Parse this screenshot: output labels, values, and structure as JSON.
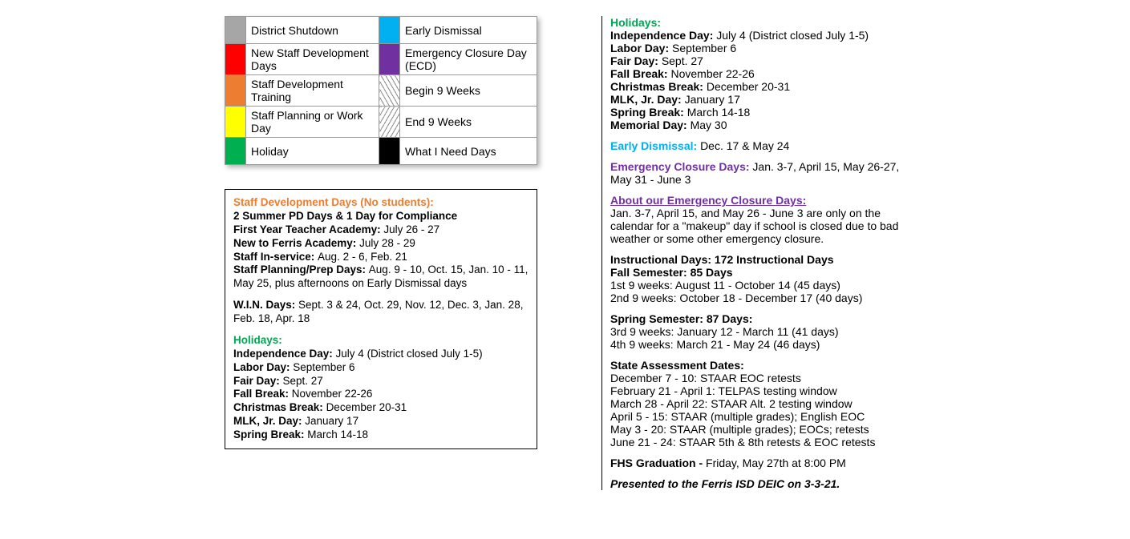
{
  "legend": {
    "rows": [
      {
        "color1": "#a6a6a6",
        "label1": "District Shutdown",
        "color2": "#00b0f0",
        "label2": "Early Dismissal",
        "pattern2": ""
      },
      {
        "color1": "#ff0000",
        "label1": "New Staff Development Days",
        "color2": "#7030a0",
        "label2": "Emergency Closure Day (ECD)",
        "pattern2": ""
      },
      {
        "color1": "#ed7d31",
        "label1": "Staff Development Training",
        "color2": "",
        "label2": "Begin 9 Weeks",
        "pattern2": "hatch"
      },
      {
        "color1": "#ffff00",
        "label1": "Staff Planning or Work Day",
        "color2": "",
        "label2": "End 9 Weeks",
        "pattern2": "hatch2"
      },
      {
        "color1": "#00b050",
        "label1": "Holiday",
        "color2": "#000000",
        "label2": "What I Need Days",
        "pattern2": ""
      }
    ]
  },
  "left": {
    "staffDev": {
      "heading": "Staff Development Days (No students):",
      "summer": "2 Summer PD Days & 1 Day for Compliance",
      "items": [
        {
          "label": "First Year Teacher Academy:",
          "value": "July 26 - 27"
        },
        {
          "label": "New to Ferris Academy:",
          "value": "July 28 - 29"
        },
        {
          "label": "Staff In-service:",
          "value": "Aug. 2 - 6, Feb. 21"
        },
        {
          "label": "Staff Planning/Prep Days:",
          "value": "Aug. 9 - 10, Oct. 15, Jan. 10 - 11, May 25, plus afternoons on Early Dismissal days"
        }
      ],
      "win": {
        "label": "W.I.N. Days:",
        "value": "Sept. 3 & 24, Oct. 29, Nov. 12, Dec. 3, Jan. 28, Feb. 18, Apr. 18"
      }
    },
    "holidays": {
      "heading": "Holidays:",
      "items": [
        {
          "label": "Independence Day:",
          "value": "July 4 (District closed July 1-5)"
        },
        {
          "label": "Labor Day:",
          "value": "September 6"
        },
        {
          "label": "Fair Day:",
          "value": "Sept. 27"
        },
        {
          "label": "Fall Break:",
          "value": "November 22-26"
        },
        {
          "label": "Christmas Break:",
          "value": "December 20-31"
        },
        {
          "label": "MLK, Jr. Day:",
          "value": "January 17"
        },
        {
          "label": "Spring Break:",
          "value": "March 14-18"
        }
      ]
    }
  },
  "right": {
    "holidays": {
      "heading": "Holidays:",
      "items": [
        {
          "label": "Independence Day:",
          "value": "July 4 (District closed July 1-5)"
        },
        {
          "label": "Labor Day:",
          "value": "September 6"
        },
        {
          "label": "Fair Day:",
          "value": "Sept. 27"
        },
        {
          "label": "Fall Break:",
          "value": "November 22-26"
        },
        {
          "label": "Christmas Break:",
          "value": "December 20-31"
        },
        {
          "label": "MLK, Jr. Day:",
          "value": "January 17"
        },
        {
          "label": "Spring Break:",
          "value": "March 14-18"
        },
        {
          "label": "Memorial Day:",
          "value": "May 30"
        }
      ]
    },
    "earlyDismissal": {
      "heading": "Early Dismissal:",
      "value": "Dec. 17 & May 24"
    },
    "ecd": {
      "heading": "Emergency Closure Days:",
      "value": "Jan. 3-7, April 15, May 26-27, May 31 - June 3"
    },
    "aboutEcd": {
      "heading": "About our Emergency Closure Days:",
      "text": "Jan. 3-7, April 15, and May 26 - June 3 are only on the calendar for a \"makeup\" day if school is closed due to bad weather or some other emergency closure."
    },
    "instructional": {
      "heading": "Instructional Days:  172 Instructional Days",
      "fall": {
        "label": "Fall Semester:  85 Days",
        "q1": "1st 9 weeks:  August 11 - October 14 (45 days)",
        "q2": "2nd 9 weeks: October 18 - December 17 (40 days)"
      },
      "spring": {
        "label": "Spring Semester:  87 Days:",
        "q3": "3rd 9 weeks:  January 12 - March 11 (41 days)",
        "q4": "4th 9 weeks:  March 21 - May 24 (46 days)"
      }
    },
    "assessments": {
      "heading": "State Assessment Dates:",
      "items": [
        "December 7 - 10: STAAR EOC retests",
        "February 21 - April 1: TELPAS testing window",
        "March 28 - April 22: STAAR Alt. 2 testing window",
        "April 5 - 15: STAAR (multiple grades); English EOC",
        "May 3 - 20: STAAR (multiple grades); EOCs; retests",
        "June 21 - 24: STAAR 5th & 8th retests & EOC retests"
      ]
    },
    "graduation": {
      "label": "FHS Graduation -",
      "value": "Friday, May 27th at 8:00 PM"
    },
    "footer": "Presented to the Ferris ISD DEIC on 3-3-21."
  }
}
